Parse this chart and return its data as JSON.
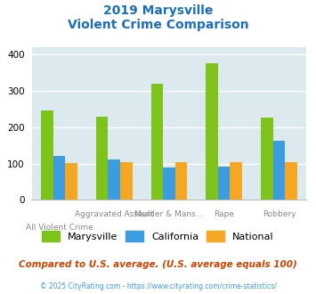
{
  "title_line1": "2019 Marysville",
  "title_line2": "Violent Crime Comparison",
  "marysville": [
    245,
    228,
    318,
    375,
    226
  ],
  "california": [
    120,
    110,
    88,
    92,
    163
  ],
  "national": [
    102,
    103,
    103,
    103,
    103
  ],
  "bar_width": 0.22,
  "ylim": [
    0,
    420
  ],
  "yticks": [
    0,
    100,
    200,
    300,
    400
  ],
  "color_marysville": "#7dc31a",
  "color_california": "#3b9de0",
  "color_national": "#f5a623",
  "background_color": "#dce9ef",
  "grid_color": "#ffffff",
  "title_color": "#1a6fba",
  "footnote": "Compared to U.S. average. (U.S. average equals 100)",
  "footnote_color": "#cc4400",
  "copyright": "© 2025 CityRating.com - https://www.cityrating.com/crime-statistics/",
  "copyright_color": "#3b9de0",
  "legend_labels": [
    "Marysville",
    "California",
    "National"
  ],
  "x_positions": [
    0,
    1,
    2,
    3,
    4
  ],
  "top_tick_labels": [
    "",
    "Aggravated Assault",
    "Murder & Mans...",
    "Rape",
    "Robbery"
  ],
  "bot_tick_labels": [
    "All Violent Crime",
    "",
    "",
    "",
    ""
  ]
}
